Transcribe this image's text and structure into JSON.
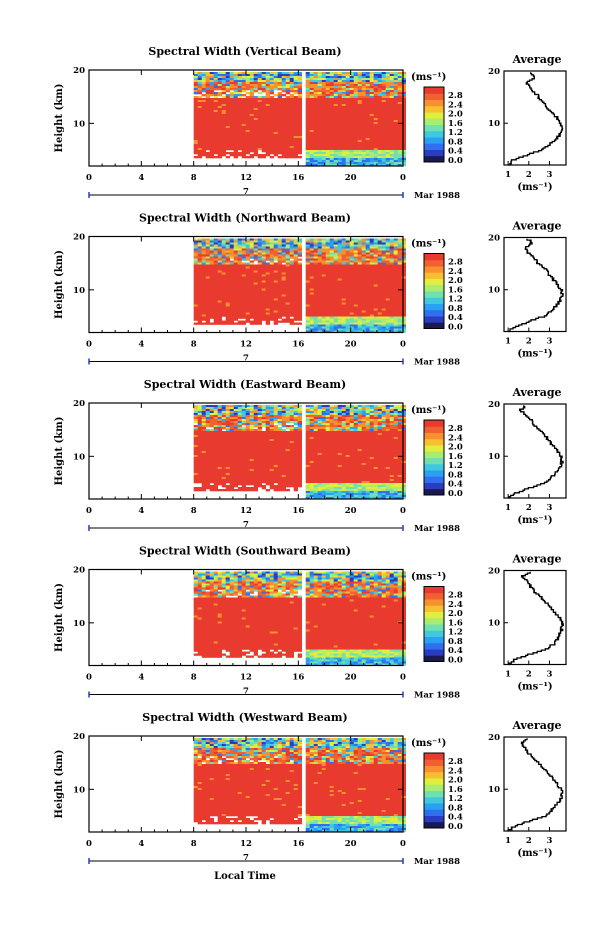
{
  "figure": {
    "xlabel": "Local Time",
    "date_label": "Mar 1988",
    "day_label": "7",
    "ylabel": "Height (km)",
    "unit_label": "(ms⁻¹)",
    "avg_title": "Average",
    "avg_xlabel": "(ms⁻¹)"
  },
  "colorbar": {
    "ticks": [
      "2.8",
      "2.4",
      "2.0",
      "1.6",
      "1.2",
      "0.8",
      "0.4",
      "0.0"
    ],
    "colors": [
      "#1a1a50",
      "#2a3cc0",
      "#3070f0",
      "#2aa0f0",
      "#40c8e0",
      "#70e0b0",
      "#a8ec70",
      "#e0ee40",
      "#f8c030",
      "#f89030",
      "#f06030",
      "#e83a2e"
    ]
  },
  "chart_data": [
    {
      "type": "heatmap",
      "title": "Spectral Width (Vertical Beam)",
      "x_ticks": [
        "0",
        "4",
        "8",
        "12",
        "16",
        "20",
        "0"
      ],
      "y_ticks": [
        "20",
        "10"
      ],
      "xlim": [
        0,
        24
      ],
      "ylim": [
        2,
        20
      ],
      "data_start_hour": 8,
      "gap_hour": 16.4,
      "profile": {
        "title": "Average",
        "x_ticks": [
          "1",
          "2",
          "3"
        ],
        "xlim": [
          0.8,
          3.8
        ],
        "ylim": [
          2,
          20
        ],
        "height_km": [
          2,
          3,
          4,
          5,
          6,
          7,
          8,
          9,
          10,
          11,
          12,
          13,
          14,
          15,
          16,
          17,
          18,
          19,
          20
        ],
        "width_ms": [
          1.0,
          1.2,
          1.9,
          2.6,
          3.0,
          3.3,
          3.5,
          3.6,
          3.5,
          3.4,
          3.2,
          2.9,
          2.7,
          2.5,
          2.3,
          2.0,
          1.9,
          2.3,
          2.1
        ]
      }
    },
    {
      "type": "heatmap",
      "title": "Spectral Width (Northward Beam)",
      "x_ticks": [
        "0",
        "4",
        "8",
        "12",
        "16",
        "20",
        "0"
      ],
      "y_ticks": [
        "20",
        "10"
      ],
      "xlim": [
        0,
        24
      ],
      "ylim": [
        2,
        20
      ],
      "data_start_hour": 8,
      "gap_hour": 16.4,
      "profile": {
        "title": "Average",
        "x_ticks": [
          "1",
          "2",
          "3"
        ],
        "xlim": [
          0.8,
          3.8
        ],
        "ylim": [
          2,
          20
        ],
        "height_km": [
          2,
          3,
          4,
          5,
          6,
          7,
          8,
          9,
          10,
          11,
          12,
          13,
          14,
          15,
          16,
          17,
          18,
          19,
          20
        ],
        "width_ms": [
          1.0,
          1.3,
          2.0,
          2.7,
          3.1,
          3.3,
          3.5,
          3.6,
          3.6,
          3.4,
          3.2,
          3.0,
          2.8,
          2.5,
          2.3,
          2.0,
          1.8,
          2.2,
          1.9
        ]
      }
    },
    {
      "type": "heatmap",
      "title": "Spectral Width (Eastward Beam)",
      "x_ticks": [
        "0",
        "4",
        "8",
        "12",
        "16",
        "20",
        "0"
      ],
      "y_ticks": [
        "20",
        "10"
      ],
      "xlim": [
        0,
        24
      ],
      "ylim": [
        2,
        20
      ],
      "data_start_hour": 8,
      "gap_hour": 16.4,
      "profile": {
        "title": "Average",
        "x_ticks": [
          "1",
          "2",
          "3"
        ],
        "xlim": [
          0.8,
          3.8
        ],
        "ylim": [
          2,
          20
        ],
        "height_km": [
          2,
          3,
          4,
          5,
          6,
          7,
          8,
          9,
          10,
          11,
          12,
          13,
          14,
          15,
          16,
          17,
          18,
          19,
          20
        ],
        "width_ms": [
          1.0,
          1.3,
          2.0,
          2.8,
          3.1,
          3.3,
          3.5,
          3.6,
          3.6,
          3.4,
          3.2,
          3.0,
          2.8,
          2.6,
          2.3,
          2.1,
          1.8,
          1.6,
          1.9
        ]
      }
    },
    {
      "type": "heatmap",
      "title": "Spectral Width (Southward Beam)",
      "x_ticks": [
        "0",
        "4",
        "8",
        "12",
        "16",
        "20",
        "0"
      ],
      "y_ticks": [
        "20",
        "10"
      ],
      "xlim": [
        0,
        24
      ],
      "ylim": [
        2,
        20
      ],
      "data_start_hour": 8,
      "gap_hour": 16.4,
      "profile": {
        "title": "Average",
        "x_ticks": [
          "1",
          "2",
          "3"
        ],
        "xlim": [
          0.8,
          3.8
        ],
        "ylim": [
          2,
          20
        ],
        "height_km": [
          2,
          3,
          4,
          5,
          6,
          7,
          8,
          9,
          10,
          11,
          12,
          13,
          14,
          15,
          16,
          17,
          18,
          19,
          20
        ],
        "width_ms": [
          1.0,
          1.3,
          2.0,
          2.8,
          3.2,
          3.4,
          3.5,
          3.6,
          3.6,
          3.5,
          3.3,
          3.1,
          2.8,
          2.6,
          2.3,
          2.1,
          1.9,
          1.7,
          2.1
        ]
      }
    },
    {
      "type": "heatmap",
      "title": "Spectral Width (Westward Beam)",
      "x_ticks": [
        "0",
        "4",
        "8",
        "12",
        "16",
        "20",
        "0"
      ],
      "y_ticks": [
        "20",
        "10"
      ],
      "xlim": [
        0,
        24
      ],
      "ylim": [
        2,
        20
      ],
      "data_start_hour": 8,
      "gap_hour": 16.4,
      "profile": {
        "title": "Average",
        "x_ticks": [
          "1",
          "2",
          "3"
        ],
        "xlim": [
          0.8,
          3.8
        ],
        "ylim": [
          2,
          20
        ],
        "height_km": [
          2,
          3,
          4,
          5,
          6,
          7,
          8,
          9,
          10,
          11,
          12,
          13,
          14,
          15,
          16,
          17,
          18,
          19,
          20
        ],
        "width_ms": [
          1.0,
          1.3,
          2.0,
          2.8,
          3.1,
          3.3,
          3.5,
          3.6,
          3.6,
          3.4,
          3.2,
          3.0,
          2.7,
          2.5,
          2.3,
          2.0,
          1.8,
          1.7,
          1.9
        ]
      }
    }
  ]
}
